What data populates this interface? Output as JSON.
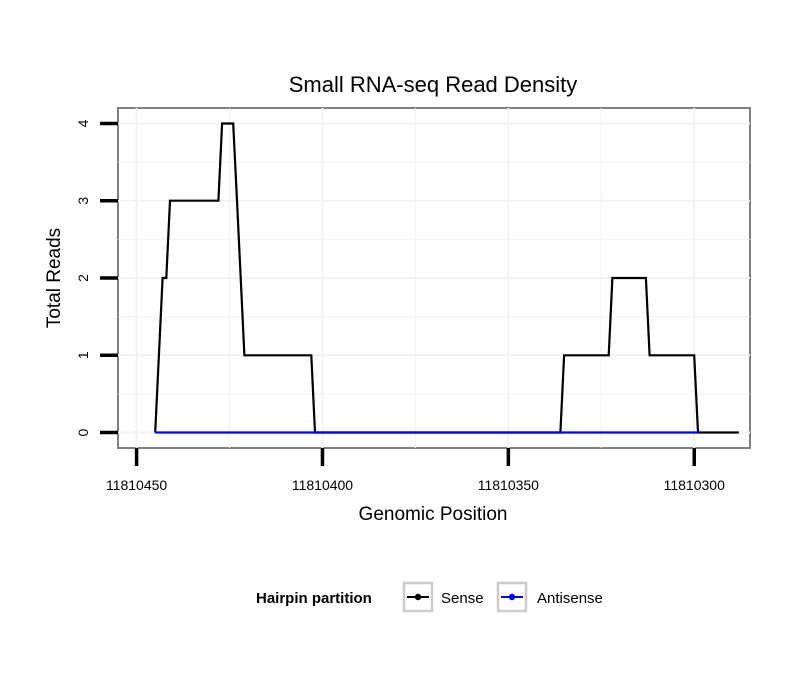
{
  "chart_data": {
    "type": "line",
    "title": "Small RNA-seq Read Density",
    "xlabel": "Genomic Position",
    "ylabel": "Total Reads",
    "x_reversed": true,
    "xlim": [
      11810455,
      11810285
    ],
    "ylim": [
      -0.2,
      4.2
    ],
    "x_ticks": [
      11810450,
      11810400,
      11810350,
      11810300
    ],
    "x_tick_labels": [
      "11810450",
      "11810400",
      "11810350",
      "11810300"
    ],
    "y_ticks": [
      0,
      1,
      2,
      3,
      4
    ],
    "y_tick_labels": [
      "0",
      "1",
      "2",
      "3",
      "4"
    ],
    "grid": true,
    "legend": {
      "title": "Hairpin partition",
      "position": "bottom",
      "entries": [
        "Sense",
        "Antisense"
      ]
    },
    "series": [
      {
        "name": "Sense",
        "color": "#000000",
        "x": [
          11810445,
          11810443,
          11810442,
          11810441,
          11810428,
          11810427,
          11810424,
          11810423,
          11810421,
          11810403,
          11810402,
          11810336,
          11810335,
          11810323,
          11810322,
          11810313,
          11810312,
          11810300,
          11810299,
          11810288
        ],
        "y": [
          0,
          2,
          2,
          3,
          3,
          4,
          4,
          3,
          1,
          1,
          0,
          0,
          1,
          1,
          2,
          2,
          1,
          1,
          0,
          0
        ]
      },
      {
        "name": "Antisense",
        "color": "#0000ff",
        "x": [
          11810445,
          11810402,
          11810336,
          11810299
        ],
        "y": [
          0,
          0,
          0,
          0
        ]
      }
    ]
  }
}
